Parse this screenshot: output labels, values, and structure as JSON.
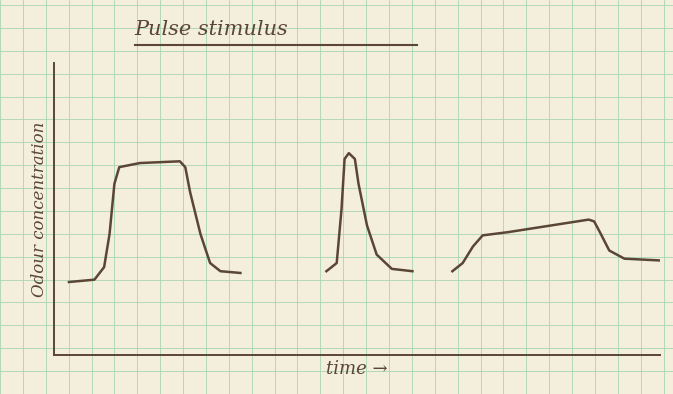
{
  "chart_data": {
    "type": "line",
    "title": "Pulse stimulus",
    "x_label": "time →",
    "y_label": "Odour concentration",
    "x": [
      2.5,
      6.7,
      8.3,
      9.2,
      10.0,
      10.8,
      14.2,
      20.8,
      21.7,
      22.5,
      24.2,
      25.8,
      27.5,
      30.8,
      38.0,
      45.0,
      46.7,
      47.5,
      48.0,
      48.7,
      49.7,
      50.3,
      51.7,
      53.3,
      55.8,
      59.2,
      62.0,
      65.8,
      67.5,
      69.2,
      70.8,
      75.0,
      88.3,
      89.2,
      90.3,
      91.7,
      94.2,
      100.0
    ],
    "values": [
      24.9,
      25.7,
      30.0,
      41.4,
      58.6,
      64.3,
      65.7,
      66.3,
      64.3,
      55.7,
      41.4,
      31.4,
      28.6,
      28.0,
      null,
      28.6,
      31.4,
      50.0,
      67.1,
      69.1,
      67.1,
      58.6,
      44.3,
      34.3,
      29.4,
      28.6,
      null,
      28.6,
      31.4,
      37.1,
      40.9,
      42.0,
      46.3,
      45.7,
      41.4,
      35.7,
      32.9,
      32.3
    ],
    "color": "#5b4636",
    "xlim": [
      0,
      100
    ],
    "ylim": [
      0,
      100
    ],
    "tick_labels": false
  }
}
